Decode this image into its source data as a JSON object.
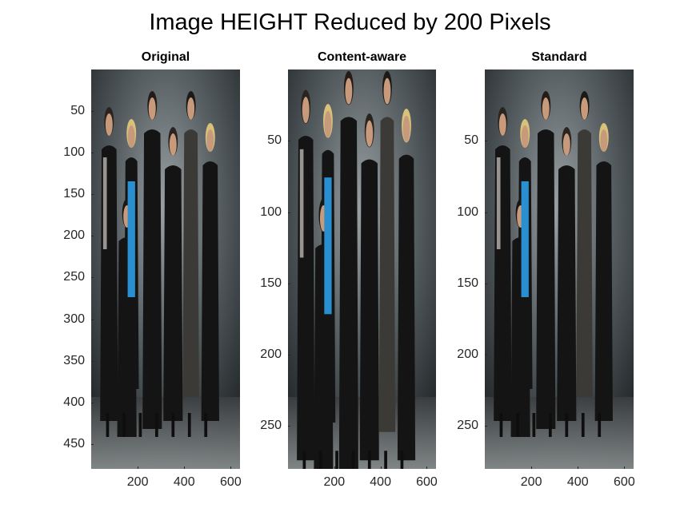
{
  "figure": {
    "title": "Image HEIGHT Reduced by 200 Pixels"
  },
  "panels": [
    {
      "id": "original",
      "title": "Original",
      "image_size": {
        "width": 640,
        "height": 480
      },
      "yticks": [
        50,
        100,
        150,
        200,
        250,
        300,
        350,
        400,
        450
      ],
      "xticks": [
        200,
        400,
        600
      ]
    },
    {
      "id": "content-aware",
      "title": "Content-aware",
      "image_size": {
        "width": 640,
        "height": 280
      },
      "yticks": [
        50,
        100,
        150,
        200,
        250
      ],
      "xticks": [
        200,
        400,
        600
      ]
    },
    {
      "id": "standard",
      "title": "Standard",
      "image_size": {
        "width": 640,
        "height": 280
      },
      "yticks": [
        50,
        100,
        150,
        200,
        250
      ],
      "xticks": [
        200,
        400,
        600
      ]
    }
  ],
  "colors": {
    "background": "#ffffff",
    "axis_text": "#262626",
    "photo_backdrop": "#5a6266",
    "suits": "#141414",
    "blue_dress": "#2a8fd0",
    "blonde_hair": "#d8c27a",
    "skin": "#c89a7c"
  }
}
